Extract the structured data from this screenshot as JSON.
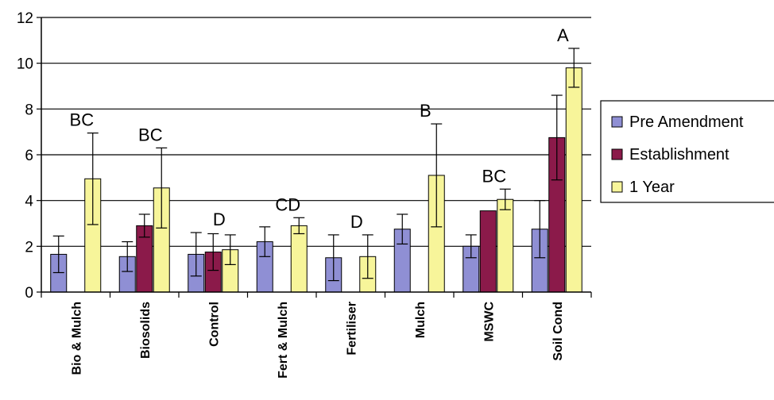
{
  "chart_data": {
    "type": "bar",
    "categories": [
      "Bio & Mulch",
      "Biosolids",
      "Control",
      "Fert & Mulch",
      "Fertiliser",
      "Mulch",
      "MSWC",
      "Soil Cond"
    ],
    "ylim": [
      0,
      12
    ],
    "yticks": [
      "0",
      "2",
      "4",
      "6",
      "8",
      "10",
      "12"
    ],
    "grid": true,
    "legend_position": "right",
    "series": [
      {
        "name": "Pre Amendment",
        "color": "#8f8fd4",
        "values": [
          1.65,
          1.55,
          1.65,
          2.2,
          1.5,
          2.75,
          2.0,
          2.75
        ],
        "errors": [
          0.8,
          0.65,
          0.95,
          0.65,
          1.0,
          0.65,
          0.5,
          1.25
        ]
      },
      {
        "name": "Establishment",
        "color": "#8b1a4a",
        "values": [
          null,
          2.9,
          1.75,
          null,
          null,
          null,
          3.55,
          6.75
        ],
        "errors": [
          null,
          0.5,
          0.8,
          null,
          null,
          null,
          null,
          1.85
        ]
      },
      {
        "name": "1 Year",
        "color": "#f7f59a",
        "values": [
          4.95,
          4.55,
          1.85,
          2.9,
          1.55,
          5.1,
          4.05,
          9.8
        ],
        "errors": [
          2.0,
          1.75,
          0.65,
          0.35,
          0.95,
          2.25,
          0.45,
          0.85
        ]
      }
    ],
    "annotations": [
      "BC",
      "BC",
      "D",
      "CD",
      "D",
      "B",
      "BC",
      "A"
    ]
  }
}
